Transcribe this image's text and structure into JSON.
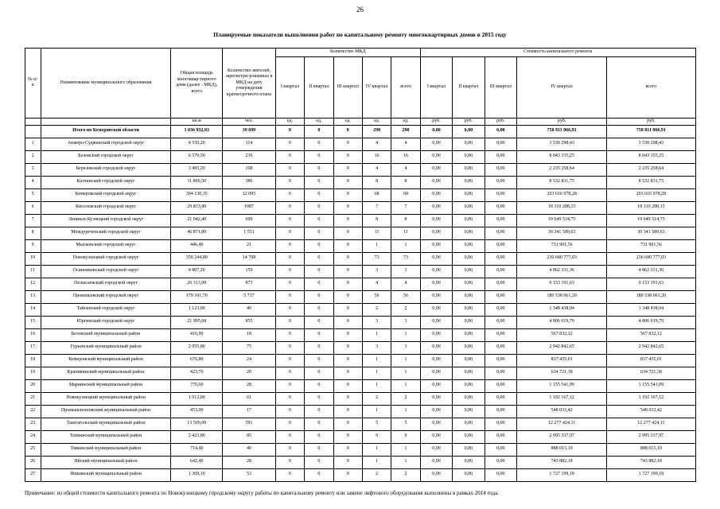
{
  "page": {
    "number": "26",
    "title": "Планируемые показатели выполнения работ по капитальному ремонту многоквартирных домов в 2015 году",
    "note": "Примечание: из общей стоимости капитального ремонта по Новокузнецкому городскому округу работы по капитальному ремонту или замене лифтового оборудования выполнены в рамках 2014 года."
  },
  "table": {
    "header": {
      "col_num": "№ п/п",
      "col_name": "Наименование муниципального образования",
      "col_area": "Общая площадь многоквар-тирного дома (далее - МКД), всего",
      "col_residents": "Количество жителей, зарегистри-рованных в МКД на дату утверждения краткосрочного плана",
      "group_count": "Количество  МКД",
      "group_cost": "Стоимость капитального ремонта",
      "quarters": [
        "I квартал",
        "II квартал",
        "III квартал",
        "IV  квартал",
        "всего"
      ]
    },
    "units_row": [
      "",
      "",
      "кв.м",
      "чел.",
      "ед.",
      "ед.",
      "ед.",
      "ед.",
      "ед.",
      "руб.",
      "руб.",
      "руб.",
      "руб.",
      "руб."
    ],
    "total_row": [
      "",
      "Итого по Кемеровской области",
      "1 036 932,93",
      "39 699",
      "0",
      "0",
      "0",
      "298",
      "298",
      "0,00",
      "0,00",
      "0,00",
      "758 811 066,91",
      "758 811 066,91"
    ],
    "rows": [
      [
        "1",
        "Анжеро-Судженский городской округ",
        "4 550,20",
        "114",
        "0",
        "0",
        "0",
        "4",
        "4",
        "0,00",
        "0,00",
        "0,00",
        "3 530 298,43",
        "3 530 298,43"
      ],
      [
        "2",
        "Беловский городской округ",
        "6 579,50",
        "236",
        "0",
        "0",
        "0",
        "16",
        "16",
        "0,00",
        "0,00",
        "0,00",
        "8 043 155,25",
        "8 043 155,25"
      ],
      [
        "3",
        "Березовский городской округ",
        "3 495,20",
        "108",
        "0",
        "0",
        "0",
        "4",
        "4",
        "0,00",
        "0,00",
        "0,00",
        "2 235 258,64",
        "2 235 258,64"
      ],
      [
        "4",
        "Калтанский городской округ",
        "11 869,50",
        "386",
        "0",
        "0",
        "0",
        "8",
        "8",
        "0,00",
        "0,00",
        "0,00",
        "8 532 831,75",
        "8 532 831,75"
      ],
      [
        "5",
        "Кемеровский городской округ",
        "304 130,35",
        "12 095",
        "0",
        "0",
        "0",
        "68",
        "68",
        "0,00",
        "0,00",
        "0,00",
        "203 616 978,28",
        "203 616 978,28"
      ],
      [
        "6",
        "Киселевский городской округ",
        "29 833,80",
        "1087",
        "0",
        "0",
        "0",
        "7",
        "7",
        "0,00",
        "0,00",
        "0,00",
        "18 310 288,15",
        "18 310 288,15"
      ],
      [
        "7",
        "Ленинск-Кузнецкий городской округ",
        "21 042,40",
        "699",
        "0",
        "0",
        "0",
        "8",
        "8",
        "0,00",
        "0,00",
        "0,00",
        "19 649 514,75",
        "19 649 514,75"
      ],
      [
        "8",
        "Междуреченский городской округ",
        "46 871,80",
        "1 551",
        "0",
        "0",
        "0",
        "11",
        "11",
        "0,00",
        "0,00",
        "0,00",
        "30 341 589,63",
        "30 341 589,63"
      ],
      [
        "9",
        "Мысковский городской округ",
        "446,40",
        "21",
        "0",
        "0",
        "0",
        "1",
        "1",
        "0,00",
        "0,00",
        "0,00",
        "731 901,56",
        "731 901,56"
      ],
      [
        "10",
        "Новокузнецкий городской округ",
        "350 244,80",
        "14 708",
        "0",
        "0",
        "0",
        "73",
        "73",
        "0,00",
        "0,00",
        "0,00",
        "236 680 777,03",
        "236 680 777,03"
      ],
      [
        "11",
        "Осинниковский городской округ",
        "4 807,20",
        "159",
        "0",
        "0",
        "0",
        "3",
        "3",
        "0,00",
        "0,00",
        "0,00",
        "4 862 331,36",
        "4 862 331,36"
      ],
      [
        "12",
        "Полысаевский городской округ",
        "26 313,90",
        "873",
        "0",
        "0",
        "0",
        "4",
        "4",
        "0,00",
        "0,00",
        "0,00",
        "9 153 191,63",
        "9 153 191,63"
      ],
      [
        "13",
        "Прокопьевский городской округ",
        "179 101,70",
        "5 737",
        "0",
        "0",
        "0",
        "56",
        "56",
        "0,00",
        "0,00",
        "0,00",
        "180 538 061,20",
        "180 538 061,20"
      ],
      [
        "14",
        "Тайгинский городской округ",
        "1 123,00",
        "40",
        "0",
        "0",
        "0",
        "2",
        "2",
        "0,00",
        "0,00",
        "0,00",
        "1 348 438,04",
        "1 348 438,04"
      ],
      [
        "15",
        "Юргинский городской округ",
        "21 995,68",
        "855",
        "0",
        "0",
        "0",
        "3",
        "3",
        "0,00",
        "0,00",
        "0,00",
        "4 806 019,79",
        "4 806 019,79"
      ],
      [
        "16",
        "Беловский муниципальный район",
        "416,90",
        "18",
        "0",
        "0",
        "0",
        "1",
        "1",
        "0,00",
        "0,00",
        "0,00",
        "567 832,12",
        "567 832,12"
      ],
      [
        "17",
        "Гурьевский муниципальный район",
        "2 055,80",
        "75",
        "0",
        "0",
        "0",
        "3",
        "3",
        "0,00",
        "0,00",
        "0,00",
        "2 942 842,65",
        "2 942 842,65"
      ],
      [
        "18",
        "Кемеровский муниципальный район",
        "676,80",
        "24",
        "0",
        "0",
        "0",
        "1",
        "1",
        "0,00",
        "0,00",
        "0,00",
        "837 435,01",
        "837 435,01"
      ],
      [
        "19",
        "Крапивинский муниципальный район",
        "423,70",
        "20",
        "0",
        "0",
        "0",
        "1",
        "1",
        "0,00",
        "0,00",
        "0,00",
        "634 721,38",
        "634 721,38"
      ],
      [
        "20",
        "Мариинский муниципальный район",
        "770,60",
        "28",
        "0",
        "0",
        "0",
        "1",
        "1",
        "0,00",
        "0,00",
        "0,00",
        "1 155 541,09",
        "1 155 541,09"
      ],
      [
        "21",
        "Новокузнецкий муниципальный район",
        "1 012,00",
        "61",
        "0",
        "0",
        "0",
        "2",
        "2",
        "0,00",
        "0,00",
        "0,00",
        "1 192 167,12",
        "1 192 167,12"
      ],
      [
        "22",
        "Промышленновский муниципальный район",
        "453,00",
        "17",
        "0",
        "0",
        "0",
        "1",
        "1",
        "0,00",
        "0,00",
        "0,00",
        "548 033,42",
        "548 033,42"
      ],
      [
        "23",
        "Таштагольский муниципальный район",
        "13 569,00",
        "591",
        "0",
        "0",
        "0",
        "5",
        "5",
        "0,00",
        "0,00",
        "0,00",
        "12 277 424,11",
        "12 277 424,11"
      ],
      [
        "24",
        "Топкинский муниципальный район",
        "2 423,80",
        "85",
        "0",
        "0",
        "0",
        "9",
        "9",
        "0,00",
        "0,00",
        "0,00",
        "2 995 337,97",
        "2 995 337,97"
      ],
      [
        "25",
        "Тяжинский муниципальный район",
        "714,40",
        "40",
        "0",
        "0",
        "0",
        "1",
        "1",
        "0,00",
        "0,00",
        "0,00",
        "888 015,19",
        "888 015,19"
      ],
      [
        "26",
        "Яйский муниципальный район",
        "642,40",
        "28",
        "0",
        "0",
        "0",
        "1",
        "1",
        "0,00",
        "0,00",
        "0,00",
        "743 882,18",
        "743 882,18"
      ],
      [
        "27",
        "Яшкинский муниципальный район",
        "1 369,10",
        "53",
        "0",
        "0",
        "0",
        "2",
        "2",
        "0,00",
        "0,00",
        "0,00",
        "1 727 199,18",
        "1 727 199,18"
      ]
    ]
  }
}
